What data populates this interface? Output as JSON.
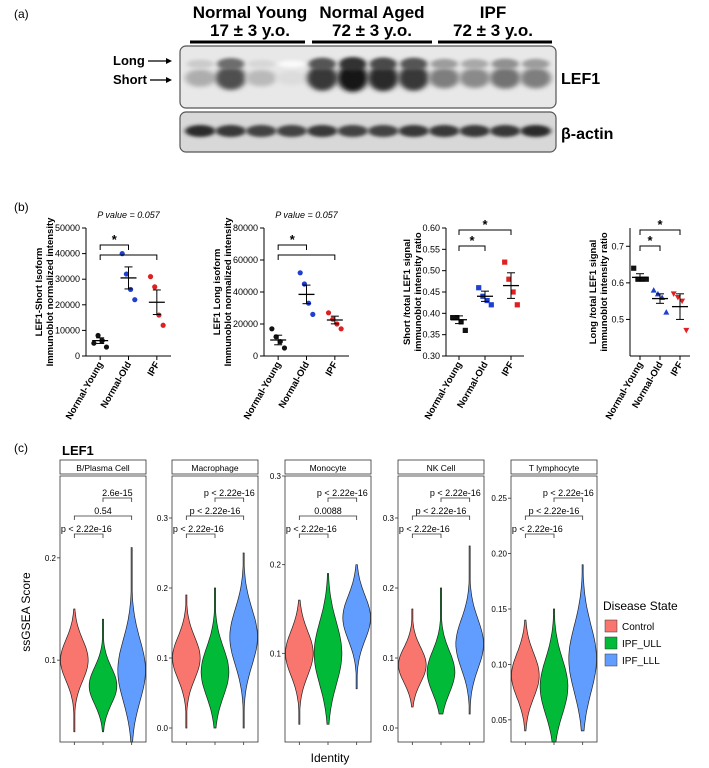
{
  "panel_labels": {
    "a": "(a)",
    "b": "(b)",
    "c": "(c)"
  },
  "blot": {
    "groups": [
      {
        "title": "Normal Young",
        "sub": "17 ± 3 y.o."
      },
      {
        "title": "Normal Aged",
        "sub": "72 ± 3 y.o."
      },
      {
        "title": "IPF",
        "sub": "72 ± 3 y.o."
      }
    ],
    "long_label": "Long",
    "short_label": "Short",
    "lef1_label": "LEF1",
    "actin_label": "β-actin",
    "lef1_lane_intensity": [
      0.35,
      0.75,
      0.3,
      0.15,
      0.85,
      1.0,
      0.9,
      0.85,
      0.55,
      0.5,
      0.6,
      0.55
    ],
    "actin_lane_intensity": [
      0.9,
      0.85,
      0.8,
      0.8,
      0.85,
      0.8,
      0.8,
      0.85,
      0.85,
      0.85,
      0.85,
      0.9
    ]
  },
  "chart_data": [
    {
      "id": "b1",
      "type": "scatter",
      "ylabel": "LEF1-Short Isoform\nImmunoblot normalized intensity",
      "categories": [
        "Normal-Young",
        "Normal-Old",
        "IPF"
      ],
      "ylim": [
        0,
        50000
      ],
      "yticks": [
        0,
        10000,
        20000,
        30000,
        40000,
        50000
      ],
      "ytick_labels": [
        "0",
        "10000",
        "20000",
        "30000",
        "40000",
        "50000"
      ],
      "points": [
        [
          5000,
          8000,
          6000,
          3500
        ],
        [
          40000,
          32000,
          26000,
          22000
        ],
        [
          31000,
          27000,
          16000,
          12000
        ]
      ],
      "means": [
        6000,
        30500,
        21000
      ],
      "sem": [
        1100,
        4300,
        4800
      ],
      "colors": [
        "#111111",
        "#1f3fd1",
        "#e02020"
      ],
      "markers": [
        "circle",
        "circle",
        "circle"
      ],
      "annotation": "P value = 0.057",
      "sig": [
        {
          "from": 0,
          "to": 1,
          "label": "*"
        }
      ],
      "sig_lines": [
        {
          "from": 0,
          "to": 2
        }
      ]
    },
    {
      "id": "b2",
      "type": "scatter",
      "ylabel": "LEF1 Long isoform\nImmunoblot normalized intensity",
      "categories": [
        "Normal-Young",
        "Normal-Old",
        "IPF"
      ],
      "ylim": [
        0,
        80000
      ],
      "yticks": [
        0,
        20000,
        40000,
        60000,
        80000
      ],
      "ytick_labels": [
        "0",
        "20000",
        "40000",
        "60000",
        "80000"
      ],
      "points": [
        [
          17000,
          12000,
          9000,
          5000
        ],
        [
          52000,
          45000,
          33000,
          26000
        ],
        [
          27000,
          23000,
          20000,
          17000
        ]
      ],
      "means": [
        10000,
        38500,
        22500
      ],
      "sem": [
        3000,
        5800,
        2400
      ],
      "colors": [
        "#111111",
        "#1f3fd1",
        "#e02020"
      ],
      "markers": [
        "circle",
        "circle",
        "circle"
      ],
      "annotation": "P value = 0.057",
      "sig": [
        {
          "from": 0,
          "to": 1,
          "label": "*"
        }
      ],
      "sig_lines": [
        {
          "from": 0,
          "to": 2
        }
      ]
    },
    {
      "id": "b3",
      "type": "scatter",
      "ylabel": "Short /total LEF1 signal\nimmunoblot intensity ratio",
      "categories": [
        "Normal-Young",
        "Normal-Old",
        "IPF"
      ],
      "ylim": [
        0.3,
        0.6
      ],
      "yticks": [
        0.3,
        0.35,
        0.4,
        0.45,
        0.5,
        0.55,
        0.6
      ],
      "ytick_labels": [
        "0.30",
        "0.35",
        "0.40",
        "0.45",
        "0.50",
        "0.55",
        "0.60"
      ],
      "points": [
        [
          0.39,
          0.39,
          0.38,
          0.36
        ],
        [
          0.46,
          0.44,
          0.43,
          0.42
        ],
        [
          0.52,
          0.48,
          0.45,
          0.42
        ]
      ],
      "means": [
        0.385,
        0.44,
        0.465
      ],
      "sem": [
        0.009,
        0.012,
        0.03
      ],
      "colors": [
        "#111111",
        "#1f3fd1",
        "#e02020"
      ],
      "markers": [
        "square",
        "square",
        "square"
      ],
      "annotation": "",
      "sig": [
        {
          "from": 0,
          "to": 1,
          "label": "*"
        },
        {
          "from": 0,
          "to": 2,
          "label": "*"
        }
      ],
      "sig_lines": []
    },
    {
      "id": "b4",
      "type": "scatter",
      "ylabel": "Long /total LEF1 signal\nimmunoblot intensity ratio",
      "categories": [
        "Normal-Young",
        "Normal-Old",
        "IPF"
      ],
      "ylim": [
        0.4,
        0.75
      ],
      "yticks": [
        0.5,
        0.6,
        0.7
      ],
      "ytick_labels": [
        "0.5",
        "0.6",
        "0.7"
      ],
      "points": [
        [
          0.64,
          0.61,
          0.61,
          0.61
        ],
        [
          0.58,
          0.57,
          0.56,
          0.52
        ],
        [
          0.57,
          0.56,
          0.55,
          0.47
        ]
      ],
      "means": [
        0.615,
        0.557,
        0.535
      ],
      "sem": [
        0.01,
        0.013,
        0.035
      ],
      "colors": [
        "#111111",
        "#1f3fd1",
        "#e02020"
      ],
      "markers": [
        "square",
        "triangle",
        "triangle-down"
      ],
      "annotation": "",
      "sig": [
        {
          "from": 0,
          "to": 1,
          "label": "*"
        },
        {
          "from": 0,
          "to": 2,
          "label": "*"
        }
      ],
      "sig_lines": []
    }
  ],
  "violin": {
    "title": "LEF1",
    "ylabel": "ssGSEA Score",
    "xlabel": "Identity",
    "legend_title": "Disease State",
    "legend": [
      {
        "name": "Control",
        "color": "#f8766d"
      },
      {
        "name": "IPF_ULL",
        "color": "#00ba38"
      },
      {
        "name": "IPF_LLL",
        "color": "#619cff"
      }
    ],
    "panels": [
      {
        "name": "B/Plasma Cell",
        "ylim": [
          0.02,
          0.28
        ],
        "yticks": [
          0.1,
          0.2
        ],
        "ytick_labels": [
          "0.1",
          "0.2"
        ],
        "groups": [
          {
            "center": 0.1,
            "sd": 0.02,
            "min": 0.03,
            "max": 0.15
          },
          {
            "center": 0.075,
            "sd": 0.018,
            "min": 0.03,
            "max": 0.14
          },
          {
            "center": 0.09,
            "sd": 0.03,
            "min": 0.02,
            "max": 0.21
          }
        ],
        "pvals": [
          {
            "label": "p < 2.22e-16",
            "from": 0,
            "to": 1,
            "level": 0
          },
          {
            "label": "0.54",
            "from": 0,
            "to": 2,
            "level": 1
          },
          {
            "label": "2.6e-15",
            "from": 1,
            "to": 2,
            "level": 2
          }
        ]
      },
      {
        "name": "Macrophage",
        "ylim": [
          -0.02,
          0.36
        ],
        "yticks": [
          0.0,
          0.1,
          0.2,
          0.3
        ],
        "ytick_labels": [
          "0.0",
          "0.1",
          "0.2",
          "0.3"
        ],
        "groups": [
          {
            "center": 0.1,
            "sd": 0.03,
            "min": 0.0,
            "max": 0.19
          },
          {
            "center": 0.08,
            "sd": 0.035,
            "min": 0.0,
            "max": 0.2
          },
          {
            "center": 0.13,
            "sd": 0.04,
            "min": 0.0,
            "max": 0.25
          }
        ],
        "pvals": [
          {
            "label": "p < 2.22e-16",
            "from": 0,
            "to": 1,
            "level": 0
          },
          {
            "label": "p < 2.22e-16",
            "from": 0,
            "to": 2,
            "level": 1
          },
          {
            "label": "p < 2.22e-16",
            "from": 1,
            "to": 2,
            "level": 2
          }
        ]
      },
      {
        "name": "Monocyte",
        "ylim": [
          0.0,
          0.3
        ],
        "yticks": [
          0.1,
          0.2,
          0.3
        ],
        "ytick_labels": [
          "0.1",
          "0.2",
          "0.3"
        ],
        "groups": [
          {
            "center": 0.1,
            "sd": 0.025,
            "min": 0.02,
            "max": 0.16
          },
          {
            "center": 0.1,
            "sd": 0.035,
            "min": 0.02,
            "max": 0.19
          },
          {
            "center": 0.14,
            "sd": 0.025,
            "min": 0.06,
            "max": 0.2
          }
        ],
        "pvals": [
          {
            "label": "p < 2.22e-16",
            "from": 0,
            "to": 1,
            "level": 0
          },
          {
            "label": "0.0088",
            "from": 0,
            "to": 2,
            "level": 1
          },
          {
            "label": "p < 2.22e-16",
            "from": 1,
            "to": 2,
            "level": 2
          }
        ]
      },
      {
        "name": "NK Cell",
        "ylim": [
          -0.02,
          0.36
        ],
        "yticks": [
          0.0,
          0.1,
          0.2,
          0.3
        ],
        "ytick_labels": [
          "0.0",
          "0.1",
          "0.2",
          "0.3"
        ],
        "groups": [
          {
            "center": 0.09,
            "sd": 0.025,
            "min": 0.03,
            "max": 0.17
          },
          {
            "center": 0.08,
            "sd": 0.03,
            "min": 0.02,
            "max": 0.2
          },
          {
            "center": 0.12,
            "sd": 0.035,
            "min": 0.02,
            "max": 0.26
          }
        ],
        "pvals": [
          {
            "label": "p < 2.22e-16",
            "from": 0,
            "to": 1,
            "level": 0
          },
          {
            "label": "p < 2.22e-16",
            "from": 0,
            "to": 2,
            "level": 1
          },
          {
            "label": "p < 2.22e-16",
            "from": 1,
            "to": 2,
            "level": 2
          }
        ]
      },
      {
        "name": "T lymphocyte",
        "ylim": [
          0.03,
          0.27
        ],
        "yticks": [
          0.05,
          0.1,
          0.15,
          0.2,
          0.25
        ],
        "ytick_labels": [
          "0.05",
          "0.10",
          "0.15",
          "0.20",
          "0.25"
        ],
        "groups": [
          {
            "center": 0.09,
            "sd": 0.02,
            "min": 0.04,
            "max": 0.14
          },
          {
            "center": 0.08,
            "sd": 0.025,
            "min": 0.03,
            "max": 0.15
          },
          {
            "center": 0.105,
            "sd": 0.03,
            "min": 0.04,
            "max": 0.19
          }
        ],
        "pvals": [
          {
            "label": "p < 2.22e-16",
            "from": 0,
            "to": 1,
            "level": 0
          },
          {
            "label": "p < 2.22e-16",
            "from": 0,
            "to": 2,
            "level": 1
          },
          {
            "label": "p < 2.22e-16",
            "from": 1,
            "to": 2,
            "level": 2
          }
        ]
      }
    ]
  }
}
